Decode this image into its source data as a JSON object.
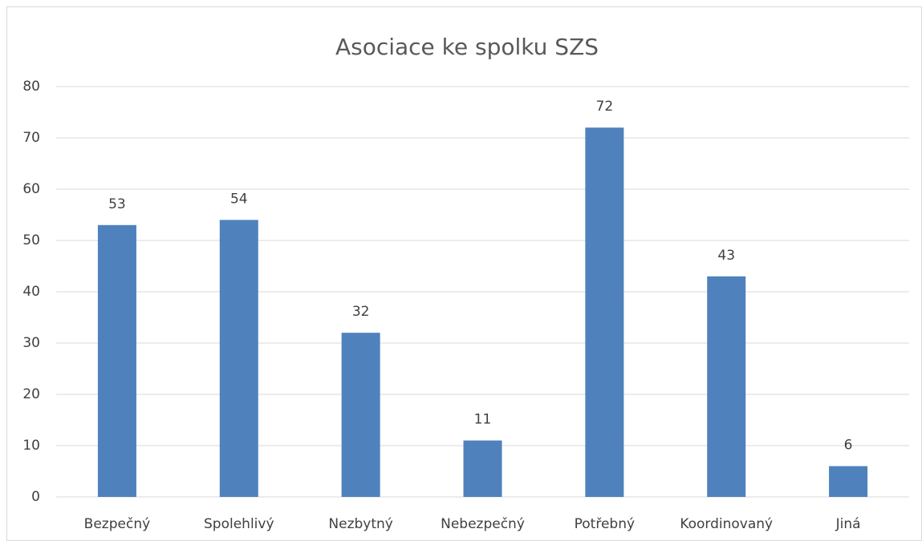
{
  "chart_data": {
    "type": "bar",
    "title": "Asociace ke spolku SZS",
    "categories": [
      "Bezpečný",
      "Spolehlivý",
      "Nezbytný",
      "Nebezpečný",
      "Potřebný",
      "Koordinovaný",
      "Jiná"
    ],
    "values": [
      53,
      54,
      32,
      11,
      72,
      43,
      6
    ],
    "color": "#4f81bd",
    "ylim": [
      0,
      80
    ],
    "yticks": [
      0,
      10,
      20,
      30,
      40,
      50,
      60,
      70,
      80
    ],
    "grid": true
  }
}
